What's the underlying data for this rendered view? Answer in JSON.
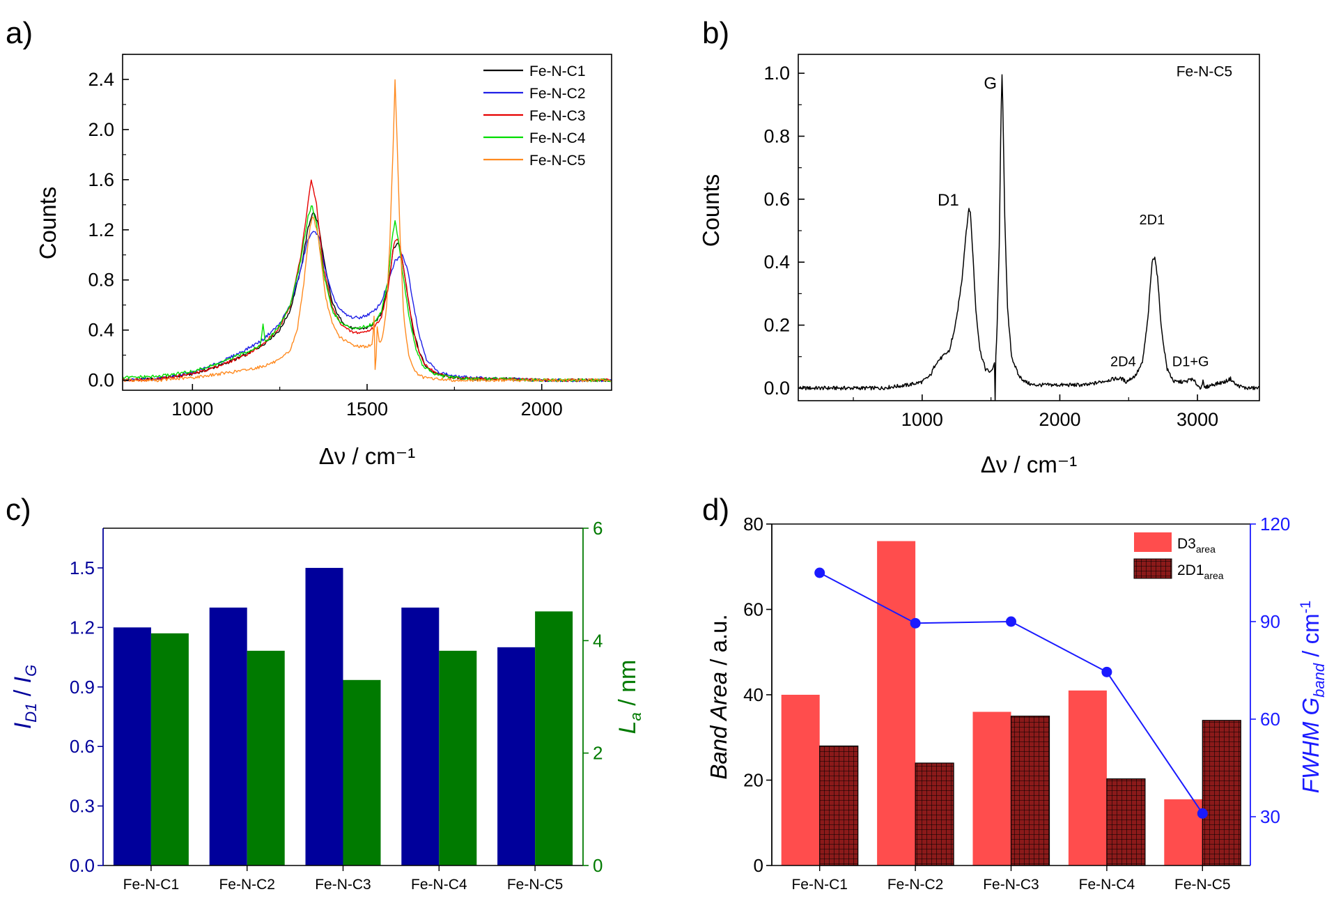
{
  "chart_data": [
    {
      "panel_label": "a)",
      "type": "line",
      "xlabel": "Δν / cm⁻¹",
      "ylabel": "Counts",
      "xlim": [
        800,
        2200
      ],
      "ylim": [
        -0.08,
        2.6
      ],
      "xticks": [
        1000,
        1500,
        2000
      ],
      "xtick_labels": [
        "1000",
        "1500",
        "2000"
      ],
      "yticks": [
        0.0,
        0.4,
        0.8,
        1.2,
        1.6,
        2.0,
        2.4
      ],
      "ytick_labels": [
        "0.0",
        "0.4",
        "0.8",
        "1.2",
        "1.6",
        "2.0",
        "2.4"
      ],
      "legend_position": "top-right",
      "series": [
        {
          "name": "Fe-N-C1",
          "color": "#000000",
          "x": [
            800,
            900,
            1000,
            1050,
            1100,
            1150,
            1200,
            1250,
            1280,
            1310,
            1330,
            1345,
            1360,
            1380,
            1400,
            1420,
            1440,
            1460,
            1480,
            1500,
            1520,
            1540,
            1560,
            1575,
            1590,
            1600,
            1615,
            1630,
            1650,
            1670,
            1700,
            1750,
            1800,
            1900,
            2000,
            2100,
            2200
          ],
          "values": [
            0.0,
            0.01,
            0.05,
            0.09,
            0.14,
            0.2,
            0.28,
            0.4,
            0.56,
            0.88,
            1.2,
            1.35,
            1.25,
            0.9,
            0.62,
            0.5,
            0.44,
            0.41,
            0.41,
            0.42,
            0.45,
            0.53,
            0.75,
            1.05,
            1.1,
            0.98,
            0.7,
            0.42,
            0.22,
            0.1,
            0.05,
            0.02,
            0.01,
            0.01,
            0.0,
            0.0,
            0.0
          ]
        },
        {
          "name": "Fe-N-C2",
          "color": "#1f1fe6",
          "x": [
            800,
            900,
            1000,
            1050,
            1100,
            1150,
            1200,
            1250,
            1280,
            1310,
            1330,
            1350,
            1365,
            1380,
            1400,
            1420,
            1440,
            1460,
            1480,
            1500,
            1520,
            1540,
            1560,
            1580,
            1600,
            1615,
            1630,
            1650,
            1670,
            1700,
            1750,
            1800,
            1900,
            2000,
            2100,
            2200
          ],
          "values": [
            0.0,
            0.01,
            0.06,
            0.11,
            0.17,
            0.24,
            0.32,
            0.45,
            0.6,
            0.88,
            1.12,
            1.2,
            1.12,
            0.88,
            0.68,
            0.57,
            0.52,
            0.5,
            0.5,
            0.52,
            0.55,
            0.62,
            0.78,
            0.95,
            1.0,
            0.9,
            0.65,
            0.35,
            0.17,
            0.07,
            0.03,
            0.02,
            0.01,
            0.0,
            0.0,
            0.0
          ]
        },
        {
          "name": "Fe-N-C3",
          "color": "#e60000",
          "x": [
            800,
            900,
            1000,
            1050,
            1100,
            1150,
            1200,
            1250,
            1280,
            1310,
            1330,
            1340,
            1355,
            1375,
            1400,
            1420,
            1440,
            1460,
            1480,
            1500,
            1520,
            1540,
            1560,
            1578,
            1590,
            1605,
            1620,
            1640,
            1660,
            1700,
            1750,
            1800,
            1900,
            2000,
            2100,
            2200
          ],
          "values": [
            0.0,
            0.01,
            0.05,
            0.09,
            0.14,
            0.2,
            0.28,
            0.42,
            0.6,
            0.98,
            1.4,
            1.6,
            1.4,
            0.9,
            0.58,
            0.47,
            0.41,
            0.38,
            0.38,
            0.39,
            0.42,
            0.5,
            0.72,
            1.12,
            1.12,
            0.9,
            0.6,
            0.3,
            0.14,
            0.05,
            0.02,
            0.01,
            0.01,
            0.0,
            0.0,
            0.0
          ]
        },
        {
          "name": "Fe-N-C4",
          "color": "#00dd00",
          "x": [
            800,
            900,
            1000,
            1050,
            1100,
            1150,
            1195,
            1202,
            1208,
            1220,
            1250,
            1280,
            1310,
            1330,
            1342,
            1355,
            1375,
            1400,
            1420,
            1440,
            1460,
            1480,
            1500,
            1520,
            1540,
            1560,
            1572,
            1580,
            1588,
            1600,
            1620,
            1640,
            1660,
            1700,
            1750,
            1800,
            1900,
            2000,
            2100,
            2200
          ],
          "values": [
            0.02,
            0.03,
            0.07,
            0.11,
            0.16,
            0.22,
            0.28,
            0.46,
            0.3,
            0.33,
            0.44,
            0.6,
            0.95,
            1.3,
            1.4,
            1.25,
            0.86,
            0.56,
            0.47,
            0.43,
            0.42,
            0.42,
            0.43,
            0.46,
            0.54,
            0.8,
            1.15,
            1.27,
            1.15,
            0.9,
            0.5,
            0.25,
            0.11,
            0.04,
            0.02,
            0.01,
            0.01,
            0.0,
            0.0,
            0.0
          ]
        },
        {
          "name": "Fe-N-C5",
          "color": "#ff8a1f",
          "x": [
            800,
            900,
            1000,
            1050,
            1100,
            1150,
            1200,
            1250,
            1280,
            1300,
            1320,
            1335,
            1345,
            1360,
            1380,
            1400,
            1420,
            1440,
            1460,
            1480,
            1500,
            1515,
            1520,
            1524,
            1528,
            1535,
            1545,
            1555,
            1565,
            1575,
            1580,
            1585,
            1595,
            1605,
            1620,
            1640,
            1660,
            1700,
            1750,
            1800,
            1900,
            2000,
            2100,
            2200
          ],
          "values": [
            0.0,
            0.0,
            0.02,
            0.04,
            0.06,
            0.08,
            0.11,
            0.16,
            0.24,
            0.4,
            0.8,
            1.2,
            1.32,
            1.15,
            0.68,
            0.45,
            0.35,
            0.31,
            0.28,
            0.27,
            0.27,
            0.28,
            0.5,
            -0.05,
            0.45,
            0.3,
            0.35,
            0.55,
            1.1,
            1.9,
            2.4,
            2.0,
            1.1,
            0.5,
            0.18,
            0.06,
            0.02,
            0.01,
            0.0,
            0.0,
            0.0,
            0.0,
            0.0,
            0.0
          ]
        }
      ]
    },
    {
      "panel_label": "b)",
      "type": "line",
      "xlabel": "Δν / cm⁻¹",
      "ylabel": "Counts",
      "xlim": [
        100,
        3450
      ],
      "ylim": [
        -0.04,
        1.06
      ],
      "xticks": [
        1000,
        2000,
        3000
      ],
      "xtick_labels": [
        "1000",
        "2000",
        "3000"
      ],
      "yticks": [
        0.0,
        0.2,
        0.4,
        0.6,
        0.8,
        1.0
      ],
      "ytick_labels": [
        "0.0",
        "0.2",
        "0.4",
        "0.6",
        "0.8",
        "1.0"
      ],
      "annotations": [
        {
          "text": "Fe-N-C5",
          "x": 3050,
          "y": 0.99
        },
        {
          "text": "G",
          "x": 1495,
          "y": 0.95
        },
        {
          "text": "D1",
          "x": 1190,
          "y": 0.58
        },
        {
          "text": "2D1",
          "x": 2670,
          "y": 0.52
        },
        {
          "text": "2D4",
          "x": 2460,
          "y": 0.07
        },
        {
          "text": "D1+G",
          "x": 2950,
          "y": 0.07
        }
      ],
      "series": [
        {
          "name": "Fe-N-C5",
          "color": "#000000",
          "x": [
            100,
            300,
            500,
            700,
            900,
            1000,
            1060,
            1100,
            1150,
            1200,
            1218,
            1222,
            1226,
            1250,
            1290,
            1320,
            1340,
            1350,
            1365,
            1390,
            1420,
            1460,
            1500,
            1525,
            1530,
            1535,
            1545,
            1560,
            1572,
            1580,
            1588,
            1600,
            1620,
            1650,
            1700,
            1750,
            1800,
            1900,
            2000,
            2100,
            2200,
            2300,
            2400,
            2450,
            2480,
            2550,
            2600,
            2640,
            2670,
            2690,
            2710,
            2740,
            2780,
            2830,
            2880,
            2920,
            2950,
            2980,
            3020,
            3040,
            3050,
            3100,
            3200,
            3240,
            3280,
            3350,
            3450
          ],
          "values": [
            0.0,
            0.0,
            0.0,
            0.0,
            0.01,
            0.02,
            0.04,
            0.08,
            0.1,
            0.12,
            0.16,
            0.15,
            0.17,
            0.22,
            0.35,
            0.5,
            0.57,
            0.56,
            0.45,
            0.25,
            0.12,
            0.06,
            0.05,
            0.08,
            -0.04,
            0.1,
            0.2,
            0.45,
            0.85,
            1.0,
            0.85,
            0.55,
            0.25,
            0.1,
            0.04,
            0.02,
            0.01,
            0.01,
            0.01,
            0.01,
            0.01,
            0.02,
            0.03,
            0.03,
            0.02,
            0.04,
            0.08,
            0.22,
            0.4,
            0.42,
            0.35,
            0.18,
            0.06,
            0.02,
            0.02,
            0.02,
            0.03,
            0.02,
            0.0,
            0.02,
            0.0,
            0.01,
            0.02,
            0.03,
            0.01,
            0.0,
            0.0
          ]
        }
      ]
    },
    {
      "panel_label": "c)",
      "type": "bar",
      "categories": [
        "Fe-N-C1",
        "Fe-N-C2",
        "Fe-N-C3",
        "Fe-N-C4",
        "Fe-N-C5"
      ],
      "ylabel": "I_D1 / I_G",
      "ylabel_parts": {
        "main1": "I",
        "sub1": "D1",
        "sep": " / ",
        "main2": "I",
        "sub2": "G"
      },
      "y2label": "L_a / nm",
      "y2label_parts": {
        "main": "L",
        "sub": "a",
        "rest": " / nm"
      },
      "ylim": [
        0,
        1.7
      ],
      "y2lim": [
        0,
        6
      ],
      "yticks": [
        0.0,
        0.3,
        0.6,
        0.9,
        1.2,
        1.5
      ],
      "ytick_labels": [
        "0.0",
        "0.3",
        "0.6",
        "0.9",
        "1.2",
        "1.5"
      ],
      "y2ticks": [
        0,
        2,
        4,
        6
      ],
      "y2tick_labels": [
        "0",
        "2",
        "4",
        "6"
      ],
      "series": [
        {
          "name": "I_D1/I_G",
          "axis": "left",
          "color": "#00009b",
          "values": [
            1.2,
            1.3,
            1.5,
            1.3,
            1.1
          ]
        },
        {
          "name": "L_a",
          "axis": "right",
          "color": "#007a00",
          "values": [
            4.13,
            3.82,
            3.3,
            3.82,
            4.52
          ]
        }
      ]
    },
    {
      "panel_label": "d)",
      "type": "bar",
      "categories": [
        "Fe-N-C1",
        "Fe-N-C2",
        "Fe-N-C3",
        "Fe-N-C4",
        "Fe-N-C5"
      ],
      "ylabel": "Band Area / a.u.",
      "ylabel_parts": {
        "italic": "Band Area",
        "rest": " / a.u."
      },
      "y2label": "FWHM G_band / cm⁻¹",
      "y2label_parts": {
        "main": "FWHM G",
        "sub": "band",
        "rest": " / cm",
        "sup": "-1"
      },
      "ylim": [
        0,
        80
      ],
      "y2lim": [
        15,
        120
      ],
      "yticks": [
        0,
        20,
        40,
        60,
        80
      ],
      "ytick_labels": [
        "0",
        "20",
        "40",
        "60",
        "80"
      ],
      "y2ticks": [
        30,
        60,
        90,
        120
      ],
      "y2tick_labels": [
        "30",
        "60",
        "90",
        "120"
      ],
      "legend_position": "top-right",
      "series": [
        {
          "name": "D3area",
          "label_main": "D3",
          "label_sub": "area",
          "axis": "left",
          "style": "solid",
          "color": "#ff4d4d",
          "values": [
            40,
            76,
            36,
            41,
            15.5
          ]
        },
        {
          "name": "2D1area",
          "label_main": "2D1",
          "label_sub": "area",
          "axis": "left",
          "style": "hatched",
          "color": "#8b1a1a",
          "values": [
            28,
            24,
            35,
            20.3,
            34
          ]
        },
        {
          "name": "FWHM G band",
          "axis": "right",
          "style": "line-marker",
          "color": "#1a1aff",
          "values": [
            105,
            89.5,
            90,
            74.5,
            31
          ]
        }
      ]
    }
  ]
}
